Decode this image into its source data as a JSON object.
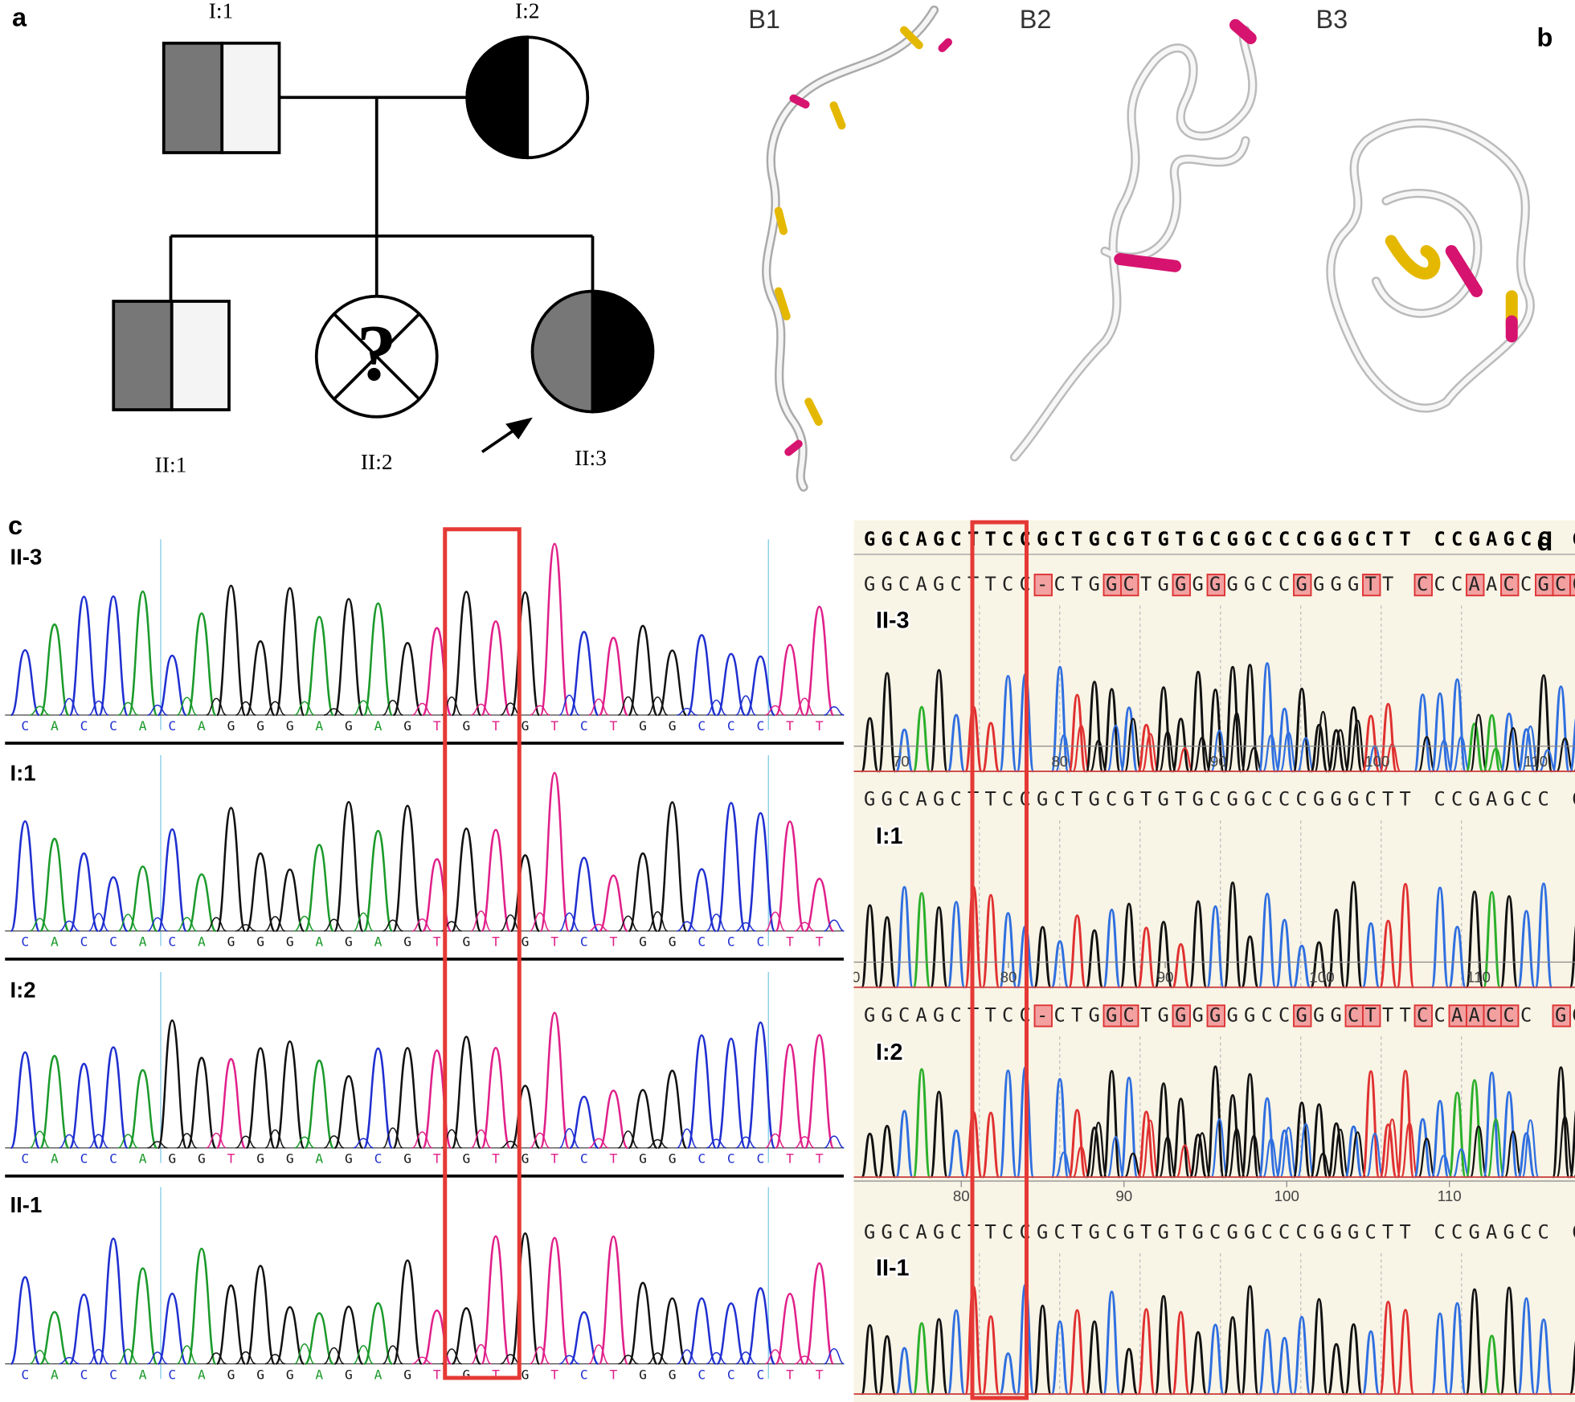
{
  "panel_a": {
    "label": "a",
    "members": {
      "I1": "I:1",
      "I2": "I:2",
      "II1": "II:1",
      "II2": "II:2",
      "II3": "II:3"
    },
    "unknown_mark": "?"
  },
  "panel_b": {
    "label": "b",
    "models": [
      "B1",
      "B2",
      "B3"
    ]
  },
  "panel_c": {
    "label": "c",
    "traces": [
      {
        "name": "II-3",
        "sequence": "CACCACAGGGAGAGTGTGTCTGGCCCTT"
      },
      {
        "name": "I:1",
        "sequence": "CACCACAGGGAGAGTGTGTCTGGCCCTT"
      },
      {
        "name": "I:2",
        "sequence": "CACCAGGTGGAGCGTGTGTCTGGCCCTT"
      },
      {
        "name": "II-1",
        "sequence": "CACCACAGGGAGAGTGTGTCTGGCCCTT"
      }
    ]
  },
  "panel_d": {
    "label": "d",
    "reference": "GGCAGCTTCCGCTGCGTGTGCGGCCCGGGCTT CCGAGCC G",
    "traces": [
      {
        "name": "II-3",
        "sequence": "GGCAGCTTCC-CTGGCTGGGGGGCCGGGGTT CCCAACCGCC",
        "ticks": [
          70,
          80,
          90,
          100,
          110
        ]
      },
      {
        "name": "I:1",
        "sequence": "GGCAGCTTCCGCTGCGTGTGCGGCCCGGGCTT CCGAGCC GGCC",
        "ticks": [
          70,
          80,
          90,
          100,
          110
        ]
      },
      {
        "name": "I:2",
        "sequence": "GGCAGCTTCC-CTGGCTGGGGGGCCGGGCTTTCCAACCC GGCC",
        "ticks": [
          80,
          90,
          100,
          110
        ]
      },
      {
        "name": "II-1",
        "sequence": "GGCAGCTTCCGCTGCGTGTGCGGCCCGGGCTT CCGAGCC GGCC",
        "ticks": []
      }
    ]
  }
}
